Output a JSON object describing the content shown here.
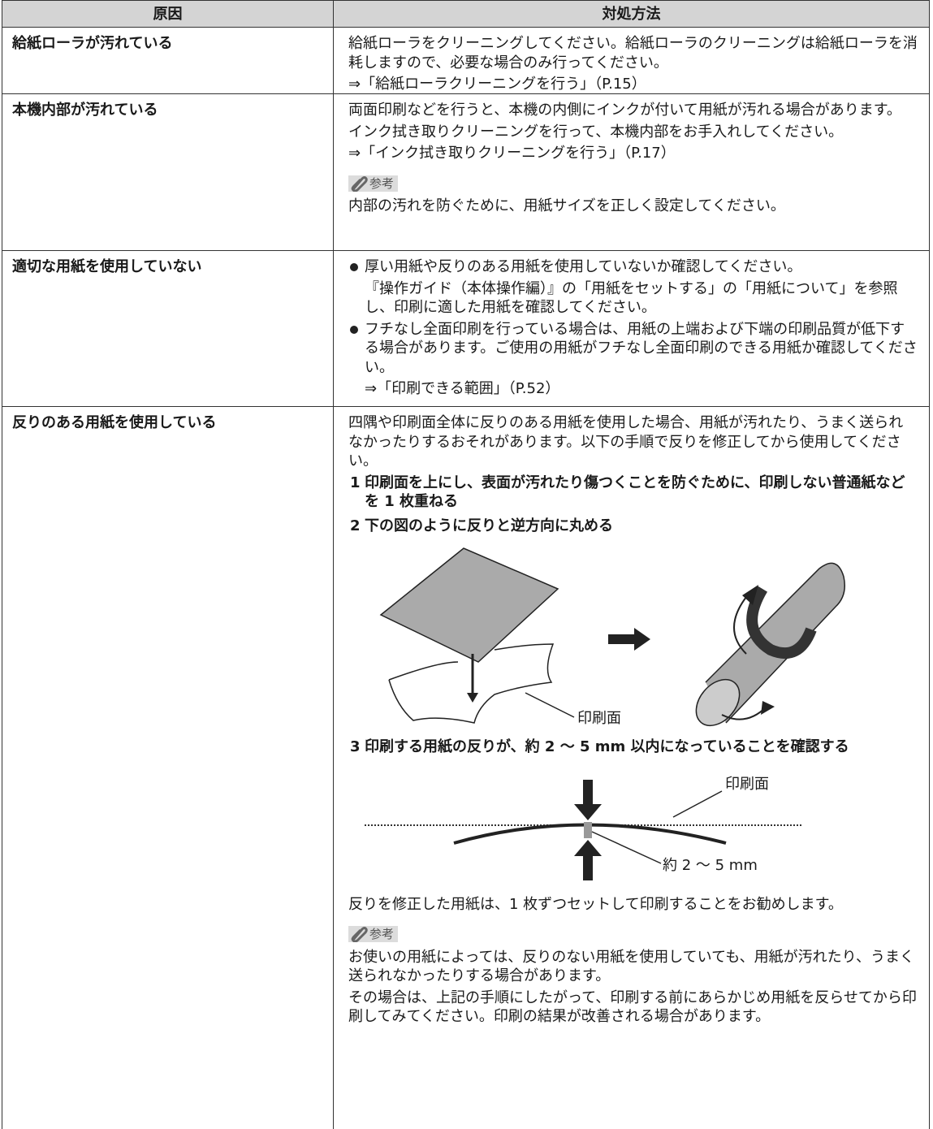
{
  "table": {
    "headers": [
      "原因",
      "対処方法"
    ],
    "rows": [
      {
        "cause": "給紙ローラが汚れている",
        "paragraphs": [
          "給紙ローラをクリーニングしてください。給紙ローラのクリーニングは給紙ローラを消耗しますので、必要な場合のみ行ってください。",
          "⇒「給紙ローラクリーニングを行う」（P.15）"
        ]
      },
      {
        "cause": "本機内部が汚れている",
        "paragraphs": [
          "両面印刷などを行うと、本機の内側にインクが付いて用紙が汚れる場合があります。",
          "インク拭き取りクリーニングを行って、本機内部をお手入れしてください。",
          "⇒「インク拭き取りクリーニングを行う」（P.17）"
        ],
        "note": {
          "label": "参考",
          "paragraphs": [
            "内部の汚れを防ぐために、用紙サイズを正しく設定してください。"
          ]
        }
      },
      {
        "cause": "適切な用紙を使用していない",
        "bullets": [
          {
            "text": "厚い用紙や反りのある用紙を使用していないか確認してください。",
            "detail": "『操作ガイド（本体操作編）』の「用紙をセットする」の「用紙について」を参照し、印刷に適した用紙を確認してください。"
          },
          {
            "text": "フチなし全面印刷を行っている場合は、用紙の上端および下端の印刷品質が低下する場合があります。ご使用の用紙がフチなし全面印刷のできる用紙か確認してください。",
            "detail": "⇒「印刷できる範囲」（P.52）"
          }
        ]
      },
      {
        "cause": "反りのある用紙を使用している",
        "intro": "四隅や印刷面全体に反りのある用紙を使用した場合、用紙が汚れたり、うまく送られなかったりするおそれがあります。以下の手順で反りを修正してから使用してください。",
        "steps": [
          {
            "number": 1,
            "text": "印刷面を上にし、表面が汚れたり傷つくことを防ぐために、印刷しない普通紙などを 1 枚重ねる"
          },
          {
            "number": 2,
            "text": "下の図のように反りと逆方向に丸める",
            "figure_labels": [
              "印刷面"
            ]
          },
          {
            "number": 3,
            "text": "印刷する用紙の反りが、約 2 ～ 5 mm 以内になっていることを確認する",
            "figure_labels": [
              "印刷面",
              "約 2 ～ 5 mm"
            ]
          }
        ],
        "closing": "反りを修正した用紙は、1 枚ずつセットして印刷することをお勧めします。",
        "note": {
          "label": "参考",
          "paragraphs": [
            "お使いの用紙によっては、反りのない用紙を使用していても、用紙が汚れたり、うまく送られなかったりする場合があります。",
            "その場合は、上記の手順にしたがって、印刷する前にあらかじめ用紙を反らせてから印刷してみてください。印刷の結果が改善される場合があります。"
          ]
        }
      }
    ]
  }
}
